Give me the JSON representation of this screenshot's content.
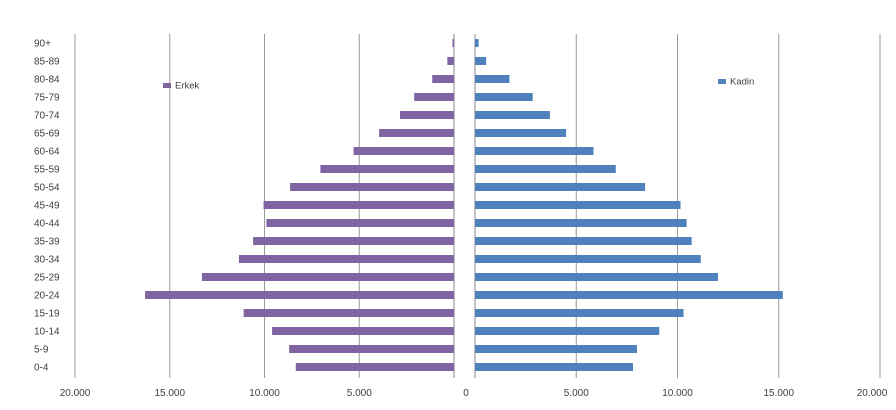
{
  "chart_data": {
    "type": "bar",
    "orientation": "horizontal",
    "subtype": "population-pyramid",
    "categories": [
      "0-4",
      "5-9",
      "10-14",
      "15-19",
      "20-24",
      "25-29",
      "30-34",
      "35-39",
      "40-44",
      "45-49",
      "50-54",
      "55-59",
      "60-64",
      "65-69",
      "70-74",
      "75-79",
      "80-84",
      "85-89",
      "90+"
    ],
    "series": [
      {
        "name": "Erkek",
        "side": "left",
        "color": "#8064a2",
        "values": [
          8350,
          8700,
          9600,
          11100,
          16300,
          13300,
          11350,
          10600,
          9900,
          10050,
          8650,
          7050,
          5300,
          3950,
          2850,
          2100,
          1150,
          350,
          80
        ]
      },
      {
        "name": "Kadın",
        "side": "right",
        "color": "#4f81bd",
        "values": [
          7800,
          8000,
          9100,
          10300,
          15200,
          12000,
          11150,
          10700,
          10450,
          10150,
          8400,
          6950,
          5850,
          4500,
          3700,
          2850,
          1700,
          550,
          180
        ]
      }
    ],
    "x_ticks_left": [
      "20.000",
      "15.000",
      "10.000",
      "5.000",
      "0"
    ],
    "x_ticks_right": [
      "5.000",
      "10.000",
      "15.000",
      "20.000"
    ],
    "xlim": [
      0,
      20000
    ],
    "grid": true,
    "legend": [
      {
        "label": "Erkek",
        "placement": "upper-left"
      },
      {
        "label": "Kadin",
        "placement": "upper-right"
      }
    ]
  }
}
